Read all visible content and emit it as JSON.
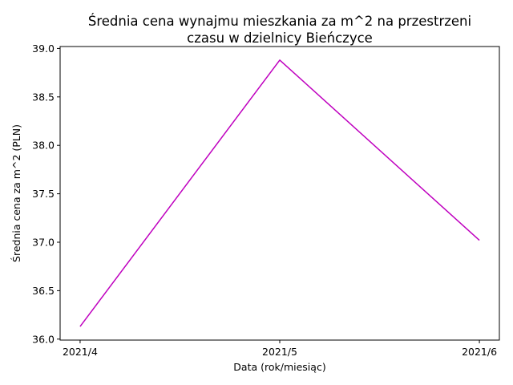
{
  "chart_data": {
    "type": "line",
    "title_lines": [
      "Średnia cena wynajmu mieszkania za m^2 na przestrzeni",
      "czasu w dzielnicy  Bieńczyce"
    ],
    "xlabel": "Data (rok/miesiąc)",
    "ylabel": "Średnia cena za m^2 (PLN)",
    "categories": [
      "2021/4",
      "2021/5",
      "2021/6"
    ],
    "series": [
      {
        "values": [
          36.13,
          38.88,
          37.02
        ],
        "color": "#bf00bf"
      }
    ],
    "ylim": [
      35.99,
      39.02
    ],
    "yticks": [
      36.0,
      36.5,
      37.0,
      37.5,
      38.0,
      38.5,
      39.0
    ],
    "ytick_labels": [
      "36.0",
      "36.5",
      "37.0",
      "37.5",
      "38.0",
      "38.5",
      "39.0"
    ],
    "grid": false,
    "legend": false
  }
}
